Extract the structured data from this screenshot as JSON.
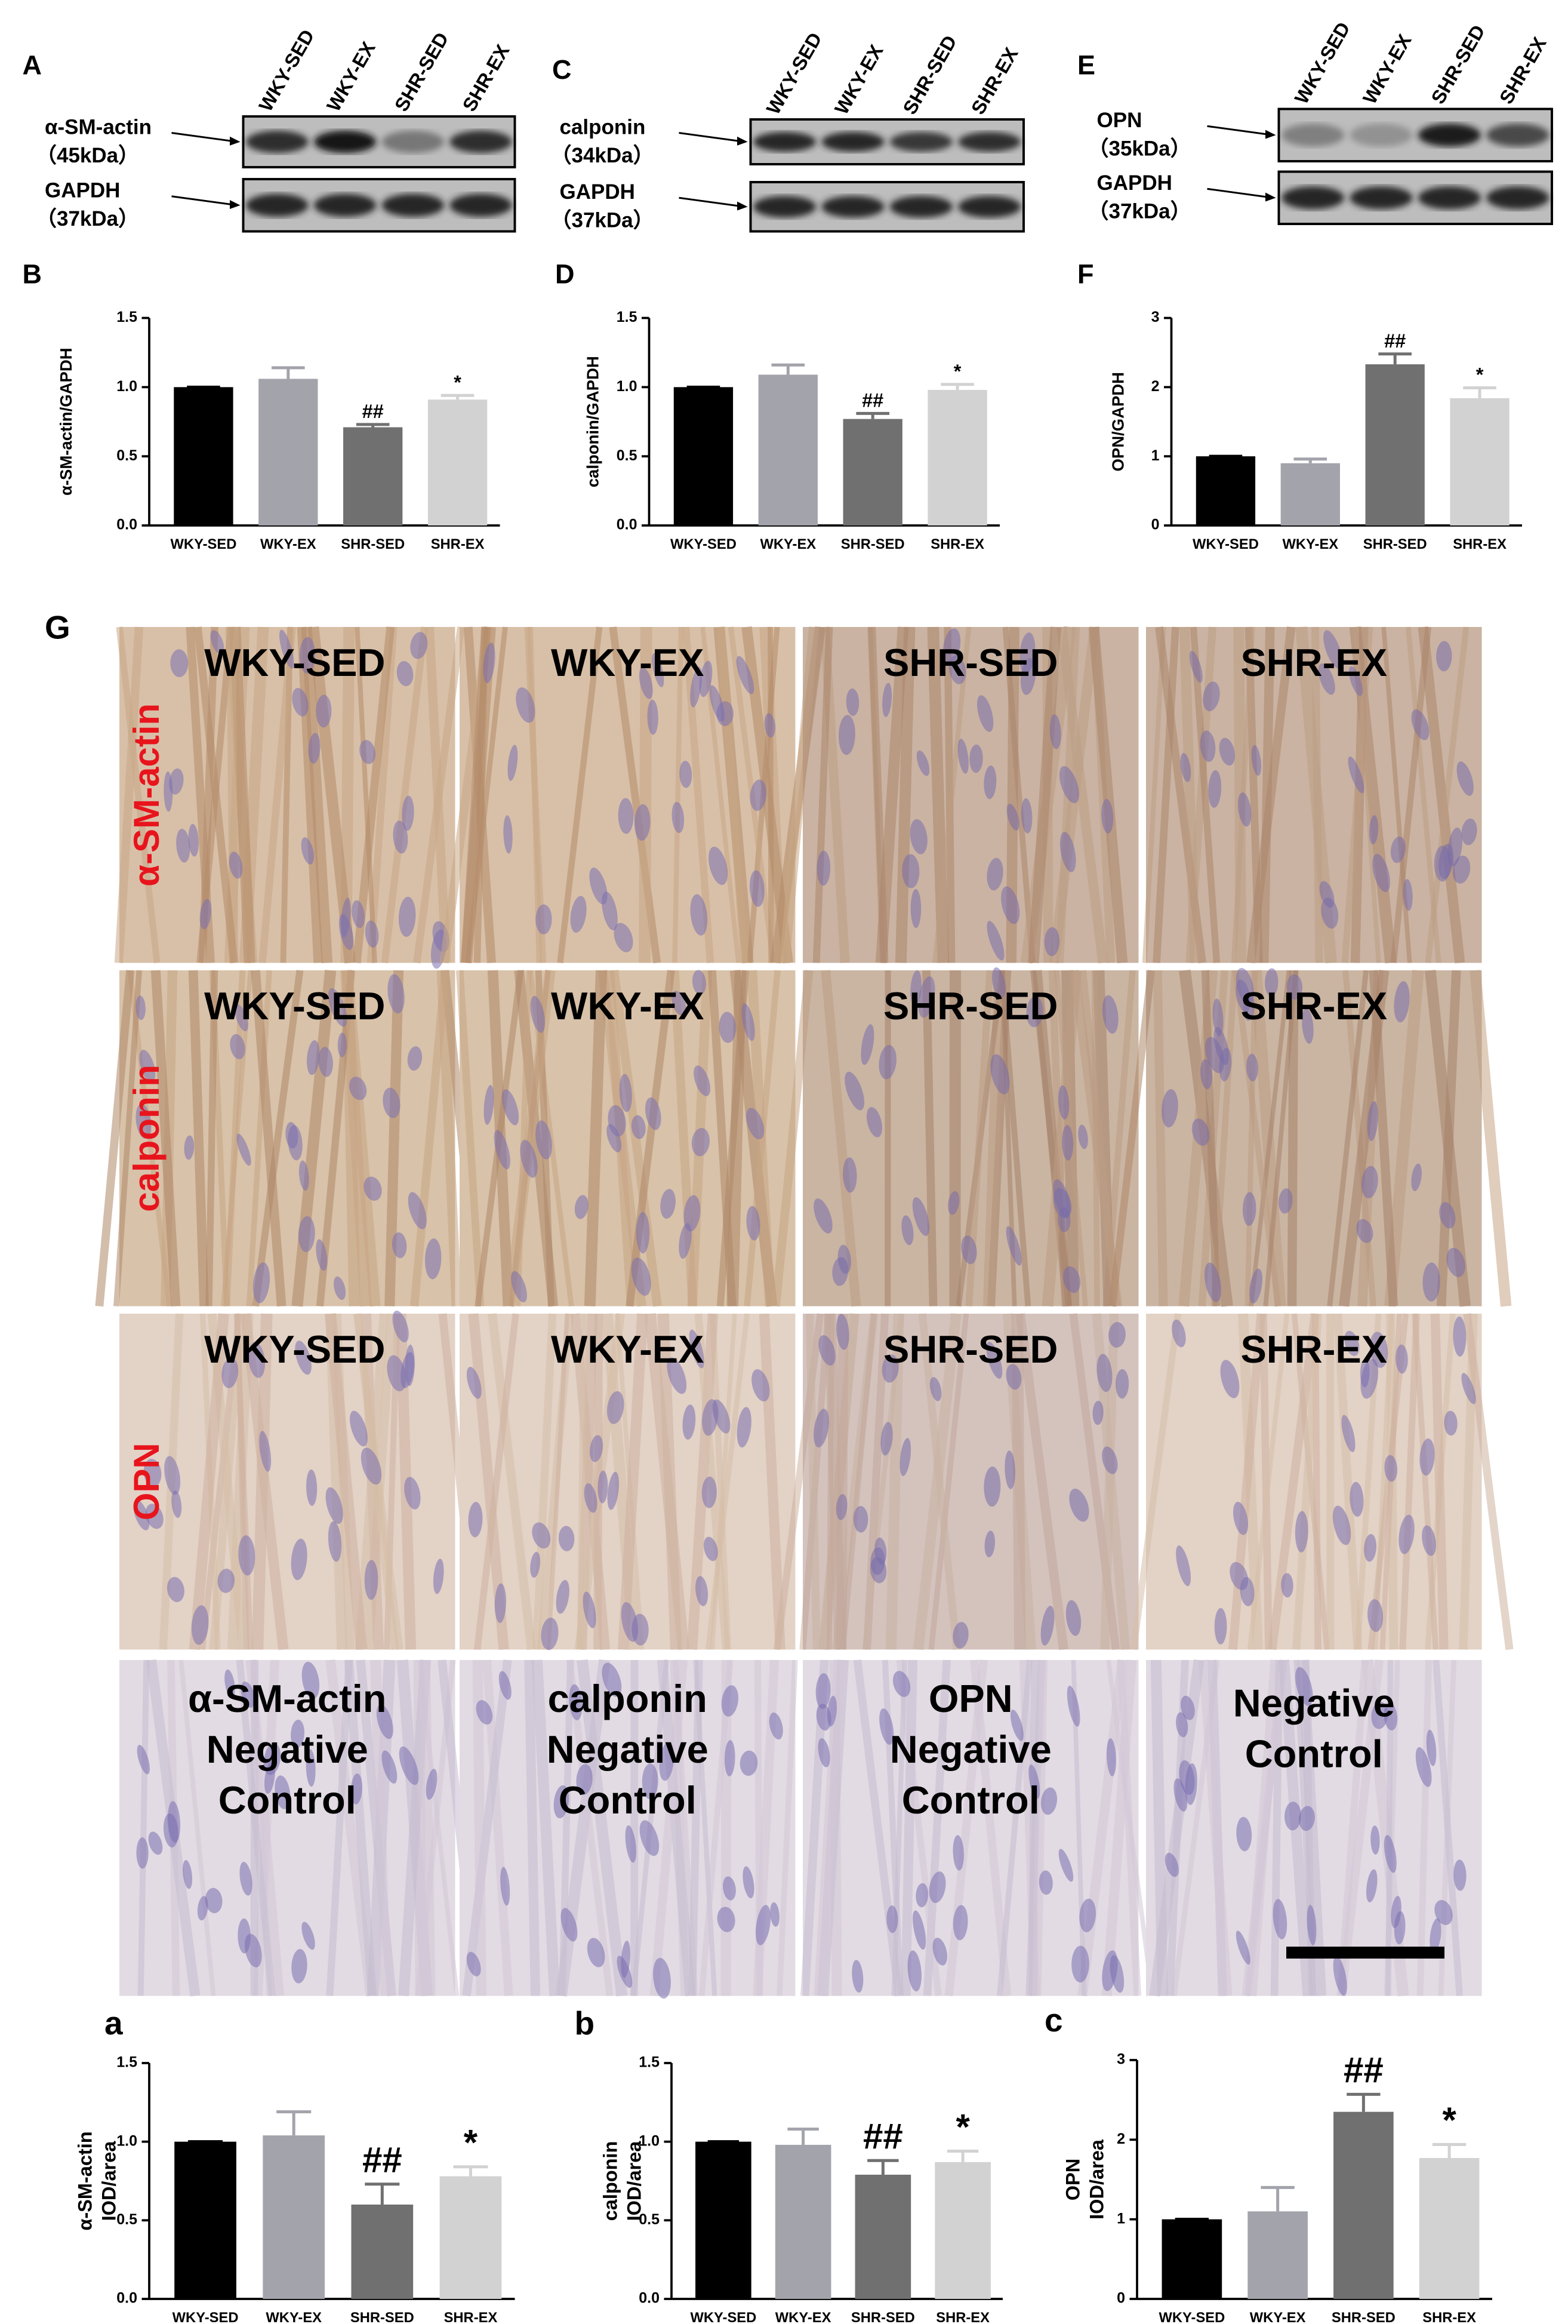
{
  "blots": [
    {
      "label": "A",
      "lanes": [
        "WKY-SED",
        "WKY-EX",
        "SHR-SED",
        "SHR-EX"
      ],
      "bands": [
        {
          "protein": "α-SM-actin",
          "size": "（45kDa）"
        },
        {
          "protein": "GAPDH",
          "size": "（37kDa）"
        }
      ]
    },
    {
      "label": "C",
      "lanes": [
        "WKY-SED",
        "WKY-EX",
        "SHR-SED",
        "SHR-EX"
      ],
      "bands": [
        {
          "protein": "calponin",
          "size": "（34kDa）"
        },
        {
          "protein": "GAPDH",
          "size": "（37kDa）"
        }
      ]
    },
    {
      "label": "E",
      "lanes": [
        "WKY-SED",
        "WKY-EX",
        "SHR-SED",
        "SHR-EX"
      ],
      "bands": [
        {
          "protein": "OPN",
          "size": "（35kDa）"
        },
        {
          "protein": "GAPDH",
          "size": "（37kDa）"
        }
      ]
    }
  ],
  "histology": {
    "label": "G",
    "rows": [
      {
        "stain": "α-SM-actin",
        "cells": [
          "WKY-SED",
          "WKY-EX",
          "SHR-SED",
          "SHR-EX"
        ]
      },
      {
        "stain": "calponin",
        "cells": [
          "WKY-SED",
          "WKY-EX",
          "SHR-SED",
          "SHR-EX"
        ]
      },
      {
        "stain": "OPN",
        "cells": [
          "WKY-SED",
          "WKY-EX",
          "SHR-SED",
          "SHR-EX"
        ]
      }
    ],
    "controls": [
      [
        "α-SM-actin",
        "Negative",
        "Control"
      ],
      [
        "calponin",
        "Negative",
        "Control"
      ],
      [
        "OPN",
        "Negative",
        "Control"
      ],
      [
        "Negative",
        "Control"
      ]
    ]
  },
  "chart_data": [
    {
      "type": "bar",
      "label": "B",
      "ylabel": "α-SM-actin/GAPDH",
      "categories": [
        "WKY-SED",
        "WKY-EX",
        "SHR-SED",
        "SHR-EX"
      ],
      "values": [
        1.0,
        1.06,
        0.71,
        0.91
      ],
      "errors": [
        0,
        0.08,
        0.02,
        0.03
      ],
      "significance": [
        null,
        null,
        "##",
        "*"
      ],
      "colors": [
        "#000000",
        "#a3a3ab",
        "#707070",
        "#d2d2d2"
      ],
      "ylim": [
        0,
        1.5
      ],
      "yticks": [
        {
          "value": 0,
          "label": "0.0"
        },
        {
          "value": 0.5,
          "label": "0.5"
        },
        {
          "value": 1,
          "label": "1.0"
        },
        {
          "value": 1.5,
          "label": "1.5"
        }
      ]
    },
    {
      "type": "bar",
      "label": "D",
      "ylabel": "calponin/GAPDH",
      "categories": [
        "WKY-SED",
        "WKY-EX",
        "SHR-SED",
        "SHR-EX"
      ],
      "values": [
        1.0,
        1.09,
        0.77,
        0.98
      ],
      "errors": [
        0,
        0.07,
        0.04,
        0.04
      ],
      "significance": [
        null,
        null,
        "##",
        "*"
      ],
      "colors": [
        "#000000",
        "#a3a3ab",
        "#707070",
        "#d2d2d2"
      ],
      "ylim": [
        0,
        1.5
      ],
      "yticks": [
        {
          "value": 0,
          "label": "0.0"
        },
        {
          "value": 0.5,
          "label": "0.5"
        },
        {
          "value": 1,
          "label": "1.0"
        },
        {
          "value": 1.5,
          "label": "1.5"
        }
      ]
    },
    {
      "type": "bar",
      "label": "F",
      "ylabel": "OPN/GAPDH",
      "categories": [
        "WKY-SED",
        "WKY-EX",
        "SHR-SED",
        "SHR-EX"
      ],
      "values": [
        1.0,
        0.9,
        2.33,
        1.84
      ],
      "errors": [
        0,
        0.06,
        0.15,
        0.15
      ],
      "significance": [
        null,
        null,
        "##",
        "*"
      ],
      "colors": [
        "#000000",
        "#a3a3ab",
        "#707070",
        "#d2d2d2"
      ],
      "ylim": [
        0,
        3
      ],
      "yticks": [
        0,
        1,
        2,
        3
      ]
    },
    {
      "type": "bar",
      "label": "a",
      "ylabel": [
        "α-SM-actin",
        "IOD/area"
      ],
      "categories": [
        "WKY-SED",
        "WKY-EX",
        "SHR-SED",
        "SHR-EX"
      ],
      "values": [
        1.0,
        1.04,
        0.6,
        0.78
      ],
      "errors": [
        0,
        0.15,
        0.13,
        0.06
      ],
      "significance": [
        null,
        null,
        "##",
        "*"
      ],
      "colors": [
        "#000000",
        "#a3a3ab",
        "#707070",
        "#d2d2d2"
      ],
      "ylim": [
        0,
        1.5
      ],
      "yticks": [
        {
          "value": 0,
          "label": "0.0"
        },
        {
          "value": 0.5,
          "label": "0.5"
        },
        {
          "value": 1,
          "label": "1.0"
        },
        {
          "value": 1.5,
          "label": "1.5"
        }
      ]
    },
    {
      "type": "bar",
      "label": "b",
      "ylabel": [
        "calponin",
        "IOD/area"
      ],
      "categories": [
        "WKY-SED",
        "WKY-EX",
        "SHR-SED",
        "SHR-EX"
      ],
      "values": [
        1.0,
        0.98,
        0.79,
        0.87
      ],
      "errors": [
        0,
        0.1,
        0.09,
        0.07
      ],
      "significance": [
        null,
        null,
        "##",
        "*"
      ],
      "colors": [
        "#000000",
        "#a3a3ab",
        "#707070",
        "#d2d2d2"
      ],
      "ylim": [
        0,
        1.5
      ],
      "yticks": [
        {
          "value": 0,
          "label": "0.0"
        },
        {
          "value": 0.5,
          "label": "0.5"
        },
        {
          "value": 1,
          "label": "1.0"
        },
        {
          "value": 1.5,
          "label": "1.5"
        }
      ]
    },
    {
      "type": "bar",
      "label": "c",
      "ylabel": [
        "OPN",
        "IOD/area"
      ],
      "categories": [
        "WKY-SED",
        "WKY-EX",
        "SHR-SED",
        "SHR-EX"
      ],
      "values": [
        1.0,
        1.1,
        2.35,
        1.77
      ],
      "errors": [
        0,
        0.3,
        0.22,
        0.17
      ],
      "significance": [
        null,
        null,
        "##",
        "*"
      ],
      "colors": [
        "#000000",
        "#a3a3ab",
        "#707070",
        "#d2d2d2"
      ],
      "ylim": [
        0,
        3
      ],
      "yticks": [
        0,
        1,
        2,
        3
      ]
    }
  ]
}
